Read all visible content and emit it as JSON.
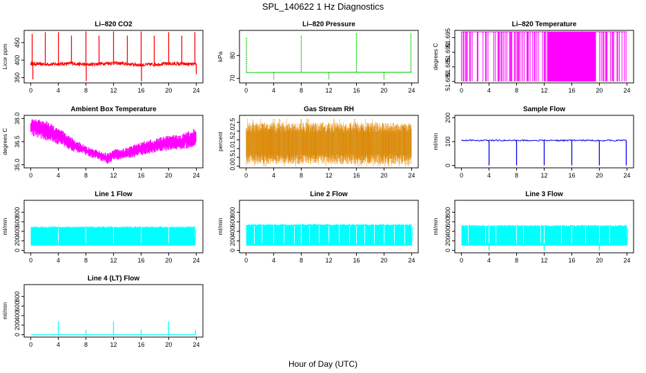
{
  "figure": {
    "title": "SPL_140622  1 Hz Diagnostics",
    "xlabel": "Hour of Day (UTC)"
  },
  "chart_data": [
    {
      "type": "line",
      "title": "Li–820 CO2",
      "ylabel": "Licor ppm",
      "color": "#ff0000",
      "xlim": [
        0,
        24
      ],
      "ylim": [
        335,
        485
      ],
      "x_ticks": [
        0,
        4,
        8,
        12,
        16,
        20,
        24
      ],
      "y_ticks": [
        350,
        400,
        450
      ],
      "series": [
        {
          "baseline": [
            [
              0,
              390
            ],
            [
              2,
              388
            ],
            [
              4,
              389
            ],
            [
              6,
              391
            ],
            [
              8,
              387
            ],
            [
              10,
              390
            ],
            [
              12,
              392
            ],
            [
              14,
              389
            ],
            [
              16,
              386
            ],
            [
              18,
              388
            ],
            [
              20,
              390
            ],
            [
              22,
              389
            ],
            [
              24,
              388
            ]
          ],
          "spikes": [
            [
              0.2,
              475
            ],
            [
              0.3,
              345
            ],
            [
              2.1,
              480
            ],
            [
              4.0,
              480
            ],
            [
              5.9,
              470
            ],
            [
              8.0,
              482
            ],
            [
              8.05,
              340
            ],
            [
              9.9,
              470
            ],
            [
              12.0,
              482
            ],
            [
              14.0,
              470
            ],
            [
              16.0,
              482
            ],
            [
              16.05,
              340
            ],
            [
              17.9,
              470
            ],
            [
              20.0,
              480
            ],
            [
              21.9,
              470
            ],
            [
              23.8,
              480
            ],
            [
              24.0,
              360
            ]
          ]
        }
      ]
    },
    {
      "type": "line",
      "title": "Li–820 Pressure",
      "ylabel": "kPa",
      "color": "#00cc00",
      "xlim": [
        0,
        24
      ],
      "ylim": [
        68,
        91
      ],
      "x_ticks": [
        0,
        4,
        8,
        12,
        16,
        20,
        24
      ],
      "y_ticks": [
        70,
        80
      ],
      "series": [
        {
          "baseline": [
            [
              0,
              72.5
            ],
            [
              4,
              72.6
            ],
            [
              8,
              72.6
            ],
            [
              12,
              72.6
            ],
            [
              16,
              72.7
            ],
            [
              20,
              72.7
            ],
            [
              24,
              72.7
            ]
          ],
          "spikes": [
            [
              0.05,
              88
            ],
            [
              4.0,
              69.5
            ],
            [
              8.0,
              89
            ],
            [
              12.0,
              69.5
            ],
            [
              16.0,
              90
            ],
            [
              20.0,
              69.5
            ],
            [
              23.9,
              90
            ]
          ]
        }
      ]
    },
    {
      "type": "line",
      "title": "Li–820 Temperature",
      "ylabel": "degrees C",
      "color": "#ff00ff",
      "xlim": [
        0,
        24
      ],
      "ylim": [
        51.6795,
        51.6975
      ],
      "x_ticks": [
        0,
        4,
        8,
        12,
        16,
        20,
        24
      ],
      "y_ticks": [
        51.68,
        51.685,
        51.69,
        51.695
      ],
      "y_tick_labels": [
        "51.680",
        "51.685",
        "51.690",
        "51.695"
      ],
      "series": [
        {
          "levels": [
            51.68,
            51.697
          ],
          "dense_band": [
            [
              12.5,
              19.5
            ]
          ]
        }
      ]
    },
    {
      "type": "line",
      "title": "Ambient Box Temperature",
      "ylabel": "degrees C",
      "color": "#ff00ff",
      "xlim": [
        0,
        24
      ],
      "ylim": [
        34.8,
        38.2
      ],
      "x_ticks": [
        0,
        4,
        8,
        12,
        16,
        20,
        24
      ],
      "y_ticks": [
        35.0,
        36.5,
        38.0
      ],
      "y_tick_labels": [
        "35.0",
        "36.5",
        "38.0"
      ],
      "series": [
        {
          "upper": [
            [
              0,
              38.1
            ],
            [
              2,
              37.9
            ],
            [
              4,
              37.4
            ],
            [
              6,
              36.8
            ],
            [
              8,
              36.2
            ],
            [
              10,
              35.9
            ],
            [
              11,
              35.8
            ],
            [
              12,
              36.0
            ],
            [
              14,
              36.1
            ],
            [
              16,
              36.5
            ],
            [
              18,
              36.7
            ],
            [
              20,
              36.9
            ],
            [
              22,
              37.0
            ],
            [
              24,
              37.4
            ]
          ],
          "lower": [
            [
              0,
              36.9
            ],
            [
              2,
              36.6
            ],
            [
              4,
              36.3
            ],
            [
              6,
              35.9
            ],
            [
              8,
              35.6
            ],
            [
              10,
              35.3
            ],
            [
              11,
              35.0
            ],
            [
              12,
              35.3
            ],
            [
              14,
              35.4
            ],
            [
              16,
              35.6
            ],
            [
              18,
              35.8
            ],
            [
              20,
              35.9
            ],
            [
              22,
              36.0
            ],
            [
              24,
              36.1
            ]
          ]
        }
      ]
    },
    {
      "type": "line",
      "title": "Gas Stream RH",
      "ylabel": "percent",
      "color": "#ff8c00",
      "xlim": [
        0,
        24
      ],
      "ylim": [
        -0.1,
        2.9
      ],
      "x_ticks": [
        0,
        4,
        8,
        12,
        16,
        20,
        24
      ],
      "y_ticks": [
        0.0,
        0.5,
        1.0,
        1.5,
        2.0,
        2.5
      ],
      "y_tick_labels": [
        "0.0",
        "0.5",
        "1.0",
        "1.5",
        "2.0",
        "2.5"
      ],
      "series": [
        {
          "band": [
            0.1,
            2.5
          ],
          "peak": 2.7,
          "trough": 0.0
        }
      ]
    },
    {
      "type": "line",
      "title": "Sample Flow",
      "ylabel": "ml/min",
      "color": "#0000ee",
      "xlim": [
        0,
        24
      ],
      "ylim": [
        -10,
        210
      ],
      "x_ticks": [
        0,
        4,
        8,
        12,
        16,
        20,
        24
      ],
      "y_ticks": [
        0,
        100,
        200
      ],
      "series": [
        {
          "baseline": [
            [
              0,
              105
            ],
            [
              24,
              105
            ]
          ],
          "dips": [
            [
              4.0,
              0
            ],
            [
              8.0,
              0
            ],
            [
              12.0,
              0
            ],
            [
              16.0,
              0
            ],
            [
              20.0,
              0
            ],
            [
              23.9,
              0
            ]
          ]
        }
      ]
    },
    {
      "type": "line",
      "title": "Line 1 Flow",
      "ylabel": "ml/min",
      "color": "#00ffff",
      "xlim": [
        0,
        24
      ],
      "ylim": [
        -50,
        1050
      ],
      "x_ticks": [
        0,
        4,
        8,
        12,
        16,
        20,
        24
      ],
      "y_ticks": [
        0,
        200,
        400,
        600,
        800
      ],
      "series": [
        {
          "band": [
            100,
            480
          ],
          "gaps": [
            4.0,
            8.0,
            12.0,
            16.0,
            20.0
          ],
          "end": 23.8
        }
      ]
    },
    {
      "type": "line",
      "title": "Line 2 Flow",
      "ylabel": "ml/min",
      "color": "#00ffff",
      "xlim": [
        0,
        24
      ],
      "ylim": [
        -50,
        1050
      ],
      "x_ticks": [
        0,
        4,
        8,
        12,
        16,
        20,
        24
      ],
      "y_ticks": [
        0,
        200,
        400,
        600,
        800
      ],
      "series": [
        {
          "band": [
            100,
            530
          ],
          "gaps": [
            1.2,
            2.3,
            4.0,
            5.5,
            7.0,
            8.0,
            9.2,
            10.6,
            12.0,
            13.5,
            15.0,
            16.0,
            17.2,
            18.6,
            20.0,
            21.5,
            23.0
          ],
          "end": 24.0
        }
      ]
    },
    {
      "type": "line",
      "title": "Line 3 Flow",
      "ylabel": "ml/min",
      "color": "#00ffff",
      "xlim": [
        0,
        24
      ],
      "ylim": [
        -50,
        1050
      ],
      "x_ticks": [
        0,
        4,
        8,
        12,
        16,
        20,
        24
      ],
      "y_ticks": [
        0,
        200,
        400,
        600,
        800
      ],
      "series": [
        {
          "band": [
            100,
            510
          ],
          "gaps": [
            1.0,
            3.5,
            4.0,
            5.0,
            8.0,
            9.0,
            11.5,
            12.0,
            14.5,
            16.0,
            18.0,
            20.0,
            21.5
          ],
          "dips": [
            4.0,
            12.0,
            20.0
          ],
          "end": 24.0
        }
      ]
    },
    {
      "type": "line",
      "title": "Line 4 (LT) Flow",
      "ylabel": "ml/min",
      "color": "#00ffff",
      "xlim": [
        0,
        24
      ],
      "ylim": [
        -50,
        1050
      ],
      "x_ticks": [
        0,
        4,
        8,
        12,
        16,
        20,
        24
      ],
      "y_ticks": [
        0,
        200,
        400,
        600,
        800
      ],
      "series": [
        {
          "baseline": [
            [
              0,
              0
            ],
            [
              24,
              0
            ]
          ],
          "spikes": [
            [
              4.0,
              280
            ],
            [
              8.0,
              100
            ],
            [
              12.0,
              280
            ],
            [
              16.0,
              100
            ],
            [
              20.0,
              280
            ],
            [
              23.9,
              100
            ]
          ]
        }
      ]
    }
  ]
}
